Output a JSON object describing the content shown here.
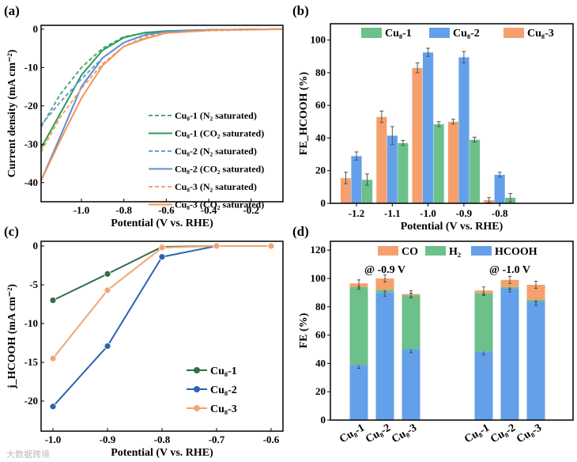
{
  "chart_data": [
    {
      "panel": "(a)",
      "type": "line",
      "xlabel": "Potential (V vs. RHE)",
      "ylabel": "Current density (mA cm⁻²)",
      "xlim": [
        -1.19,
        -0.05
      ],
      "ylim": [
        -45,
        1
      ],
      "xticks": [
        "-1.0",
        "-0.8",
        "-0.6",
        "-0.4",
        "-0.2"
      ],
      "xtick_values": [
        -1.0,
        -0.8,
        -0.6,
        -0.4,
        -0.2
      ],
      "yticks": [
        "0",
        "-10",
        "-20",
        "-30",
        "-40"
      ],
      "ytick_values": [
        0,
        -10,
        -20,
        -30,
        -40
      ],
      "legend_position": "center-right",
      "x": [
        -1.19,
        -1.1,
        -1.0,
        -0.9,
        -0.8,
        -0.7,
        -0.6,
        -0.4,
        -0.05
      ],
      "series": [
        {
          "name": "Cu₈-1 (N₂ saturated)",
          "color": "#4daa78",
          "dash": true,
          "values": [
            -25.5,
            -17,
            -10,
            -5,
            -2,
            -1,
            -0.5,
            -0.2,
            0
          ]
        },
        {
          "name": "Cu₈-1 (CO₂ saturated)",
          "color": "#2f9a55",
          "dash": false,
          "values": [
            -31,
            -22,
            -12,
            -5.5,
            -2.2,
            -0.9,
            -0.5,
            -0.2,
            0
          ]
        },
        {
          "name": "Cu₈-2 (N₂ saturated)",
          "color": "#6b9ee0",
          "dash": true,
          "values": [
            -25,
            -19,
            -13,
            -7.5,
            -3.5,
            -1.5,
            -0.8,
            -0.3,
            0
          ]
        },
        {
          "name": "Cu₈-2 (CO₂ saturated)",
          "color": "#5b8fd6",
          "dash": false,
          "values": [
            -39.5,
            -28,
            -15,
            -7.5,
            -3.5,
            -1.5,
            -0.6,
            -0.2,
            0
          ]
        },
        {
          "name": "Cu₈-3 (N₂ saturated)",
          "color": "#f2a56e",
          "dash": true,
          "values": [
            -32,
            -23,
            -15.5,
            -9,
            -4.5,
            -2,
            -1,
            -0.4,
            0
          ]
        },
        {
          "name": "Cu₈-3 (CO₂ saturated)",
          "color": "#f0965a",
          "dash": false,
          "values": [
            -39.5,
            -29,
            -18,
            -9.5,
            -4.5,
            -2.5,
            -1,
            -0.3,
            0
          ]
        }
      ]
    },
    {
      "panel": "(b)",
      "type": "bar",
      "xlabel": "Potential (V vs. RHE)",
      "ylabel": "FE_HCOOH (%)",
      "ylim": [
        0,
        110
      ],
      "categories": [
        "-1.2",
        "-1.1",
        "-1.0",
        "-0.9",
        "-0.8"
      ],
      "yticks": [
        "0",
        "20",
        "40",
        "60",
        "80",
        "100"
      ],
      "ytick_values": [
        0,
        20,
        40,
        60,
        80,
        100
      ],
      "legend_position": "top",
      "legend_order": [
        "Cu₈-1",
        "Cu₈-2",
        "Cu₈-3"
      ],
      "series": [
        {
          "name": "Cu₈-3",
          "color": "#f5a06e",
          "values": [
            15.5,
            53,
            83,
            50,
            2
          ],
          "errors": [
            3.5,
            3.5,
            3,
            1.5,
            1.5
          ]
        },
        {
          "name": "Cu₈-2",
          "color": "#64a0ea",
          "values": [
            29,
            41.5,
            92.5,
            89.5,
            17.5
          ],
          "errors": [
            2.5,
            5.5,
            2.5,
            3.5,
            1.5
          ]
        },
        {
          "name": "Cu₈-1",
          "color": "#6cc08a",
          "values": [
            14.5,
            37,
            48.5,
            39,
            3.5
          ],
          "errors": [
            3.5,
            1.5,
            1.5,
            1.5,
            2.5
          ]
        }
      ]
    },
    {
      "panel": "(c)",
      "type": "line",
      "xlabel": "Potential (V vs. RHE)",
      "ylabel": "j_HCOOH (mA cm⁻²)",
      "xlim": [
        -1.03,
        -0.58
      ],
      "ylim": [
        -22,
        0.6
      ],
      "x": [
        -1.0,
        -0.9,
        -0.8,
        -0.7,
        -0.6
      ],
      "xticks": [
        "-1.0",
        "-0.9",
        "-0.8",
        "-0.7",
        "-0.6"
      ],
      "yticks": [
        "0",
        "-5",
        "-10",
        "-15",
        "-20"
      ],
      "ytick_values": [
        0,
        -5,
        -10,
        -15,
        -20
      ],
      "legend_position": "bottom-right",
      "series": [
        {
          "name": "Cu₈-1",
          "color": "#2e6e47",
          "values": [
            -7,
            -3.6,
            -0.1,
            0,
            0
          ]
        },
        {
          "name": "Cu₈-2",
          "color": "#2a62b4",
          "values": [
            -20.7,
            -12.9,
            -1.4,
            0,
            0
          ]
        },
        {
          "name": "Cu₈-3",
          "color": "#f0a670",
          "values": [
            -14.5,
            -5.7,
            -0.2,
            0,
            0
          ]
        }
      ]
    },
    {
      "panel": "(d)",
      "type": "bar",
      "stacked": true,
      "ylabel": "FE (%)",
      "ylim": [
        0,
        125
      ],
      "yticks": [
        "0",
        "20",
        "40",
        "60",
        "80",
        "100",
        "120"
      ],
      "ytick_values": [
        0,
        20,
        40,
        60,
        80,
        100,
        120
      ],
      "groups": [
        {
          "label": "@ -0.9 V",
          "categories": [
            "Cu₈-1",
            "Cu₈-2",
            "Cu₈-3"
          ]
        },
        {
          "label": "@ -1.0 V",
          "categories": [
            "Cu₈-1",
            "Cu₈-2",
            "Cu₈-3"
          ]
        }
      ],
      "legend_position": "top",
      "series": [
        {
          "name": "HCOOH",
          "color": "#64a0ea",
          "values": [
            39,
            90,
            50,
            48.5,
            93,
            83.5
          ]
        },
        {
          "name": "H₂",
          "color": "#6cc08a",
          "values": [
            55,
            2,
            38,
            41,
            1,
            1.5
          ]
        },
        {
          "name": "CO",
          "color": "#f5a06e",
          "values": [
            2.5,
            8,
            1,
            2,
            5,
            10.5
          ]
        }
      ]
    }
  ],
  "watermark": "大数据跨境"
}
